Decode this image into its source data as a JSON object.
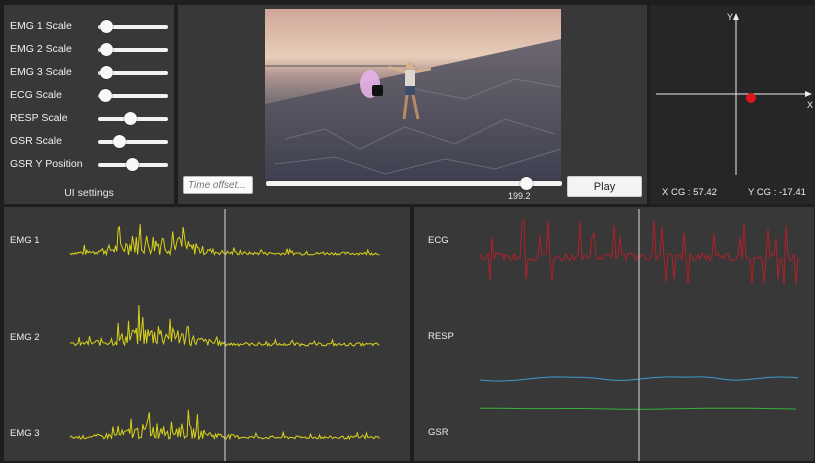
{
  "settings": {
    "title": "UI settings",
    "sliders": [
      {
        "label": "EMG 1 Scale",
        "value": 0.12
      },
      {
        "label": "EMG 2 Scale",
        "value": 0.12
      },
      {
        "label": "EMG 3 Scale",
        "value": 0.12
      },
      {
        "label": "ECG Scale",
        "value": 0.1
      },
      {
        "label": "RESP Scale",
        "value": 0.45
      },
      {
        "label": "GSR Scale",
        "value": 0.3
      },
      {
        "label": "GSR Y Position",
        "value": 0.48
      }
    ]
  },
  "video": {
    "time_placeholder": "Time offset...",
    "timeline_value": "199.2",
    "timeline_fraction": 0.88,
    "play_label": "Play"
  },
  "cog": {
    "y_axis_label": "Y",
    "x_axis_label": "X",
    "x_readout": "X CG :  57.42",
    "y_readout": "Y CG :  -17.41",
    "point_color": "#e0141c"
  },
  "signals": {
    "left": [
      {
        "label": "EMG 1",
        "color": "#d8d21a"
      },
      {
        "label": "EMG 2",
        "color": "#d8d21a"
      },
      {
        "label": "EMG 3",
        "color": "#d8d21a"
      }
    ],
    "right": [
      {
        "label": "ECG",
        "color": "#b0212a"
      },
      {
        "label": "RESP",
        "color": "#3e9bd0"
      },
      {
        "label": "GSR",
        "color": "#35b33d"
      }
    ],
    "cursor_color": "#d8d8d8"
  }
}
